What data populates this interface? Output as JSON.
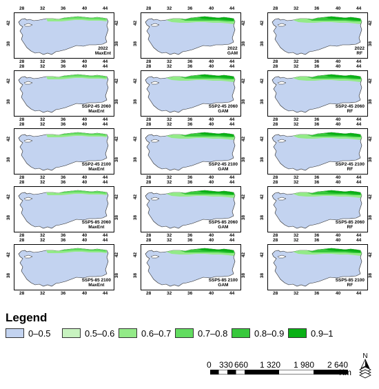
{
  "colors": {
    "c1": "#c3d3f0",
    "c2": "#c8f3c0",
    "c3": "#93ea88",
    "c4": "#62dc60",
    "c5": "#38c83c",
    "c6": "#0ab016"
  },
  "axis_ticks": {
    "lon": [
      "28",
      "32",
      "36",
      "40",
      "44"
    ],
    "lat": [
      "42",
      "38"
    ]
  },
  "panels": [
    {
      "scenario": "2022",
      "model": "MaxEnt",
      "green": 1
    },
    {
      "scenario": "2022",
      "model": "GAM",
      "green": 2
    },
    {
      "scenario": "2022",
      "model": "RF",
      "green": 2
    },
    {
      "scenario": "SSP2-45 2060",
      "model": "MaxEnt",
      "green": 1
    },
    {
      "scenario": "SSP2-45 2060",
      "model": "GAM",
      "green": 2
    },
    {
      "scenario": "SSP2-45 2060",
      "model": "RF",
      "green": 2
    },
    {
      "scenario": "SSP2-45 2100",
      "model": "MaxEnt",
      "green": 1
    },
    {
      "scenario": "SSP2-45 2100",
      "model": "GAM",
      "green": 2
    },
    {
      "scenario": "SSP2-45 2100",
      "model": "RF",
      "green": 2
    },
    {
      "scenario": "SSP5-85 2060",
      "model": "MaxEnt",
      "green": 1
    },
    {
      "scenario": "SSP5-85 2060",
      "model": "GAM",
      "green": 2
    },
    {
      "scenario": "SSP5-85 2060",
      "model": "RF",
      "green": 2
    },
    {
      "scenario": "SSP5-85 2100",
      "model": "MaxEnt",
      "green": 1
    },
    {
      "scenario": "SSP5-85 2100",
      "model": "GAM",
      "green": 2
    },
    {
      "scenario": "SSP5-85 2100",
      "model": "RF",
      "green": 2
    }
  ],
  "legend": {
    "title": "Legend",
    "items": [
      {
        "label": "0–0.5",
        "color": "#c3d3f0"
      },
      {
        "label": "0.5–0.6",
        "color": "#c8f3c0"
      },
      {
        "label": "0.6–0.7",
        "color": "#93ea88"
      },
      {
        "label": "0.7–0.8",
        "color": "#62dc60"
      },
      {
        "label": "0.8–0.9",
        "color": "#38c83c"
      },
      {
        "label": "0.9–1",
        "color": "#0ab016"
      }
    ]
  },
  "scale": {
    "ticks": [
      "0",
      "330",
      "660",
      "1 320",
      "1 980",
      "2 640"
    ],
    "unit": "Km"
  },
  "north": "N"
}
